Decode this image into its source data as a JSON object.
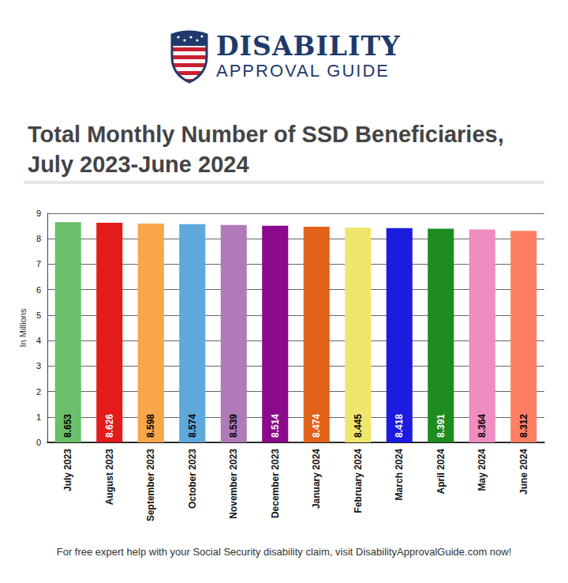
{
  "header": {
    "brand": "DISABILITY",
    "tagline": "APPROVAL GUIDE"
  },
  "chart_data": {
    "type": "bar",
    "title": "Total Monthly Number of SSD Beneficiaries, July 2023-June 2024",
    "y_label": "In Millions",
    "categories": [
      "July 2023",
      "August 2023",
      "September 2023",
      "October 2023",
      "November 2023",
      "December 2023",
      "January 2024",
      "February 2024",
      "March 2024",
      "April 2024",
      "May 2024",
      "June 2024"
    ],
    "values": [
      8.653,
      8.626,
      8.598,
      8.574,
      8.539,
      8.514,
      8.474,
      8.445,
      8.418,
      8.391,
      8.364,
      8.312
    ],
    "colors": [
      "#6abf6a",
      "#e31b1b",
      "#f9a54a",
      "#5ea8dc",
      "#b07ab8",
      "#8b0a8b",
      "#e3621a",
      "#f0e66e",
      "#1c1ce0",
      "#1e8c1e",
      "#f08cbf",
      "#ff7f62"
    ],
    "ylim": [
      0,
      9
    ],
    "yticks": [
      0,
      1,
      2,
      3,
      4,
      5,
      6,
      7,
      8,
      9
    ],
    "grid": true,
    "data_labels": true
  },
  "footer": "For free expert help with your Social Security disability claim, visit DisabilityApprovalGuide.com now!"
}
